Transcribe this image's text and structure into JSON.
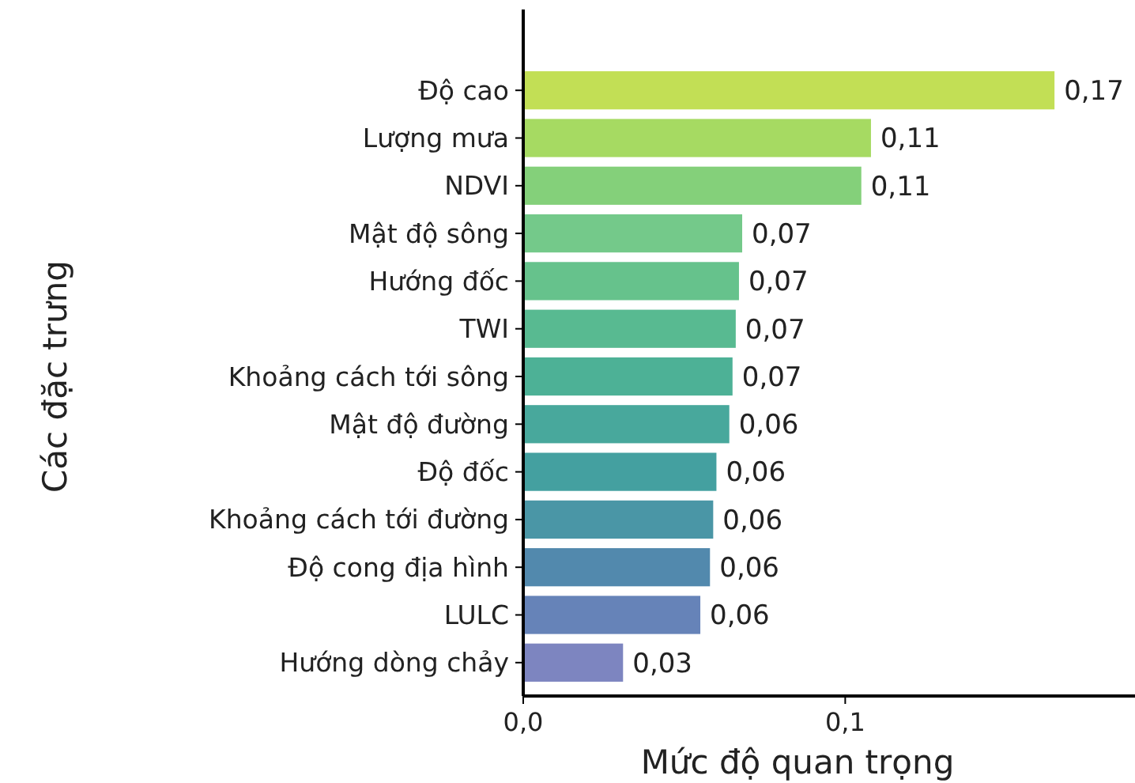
{
  "chart_data": {
    "type": "bar",
    "orientation": "horizontal",
    "xlabel": "Mức độ quan trọng",
    "ylabel": "Các đặc trưng",
    "categories": [
      "Độ cao",
      "Lượng mưa",
      "NDVI",
      "Mật độ sông",
      "Hướng đốc",
      "TWI",
      "Khoảng cách tới sông",
      "Mật độ đường",
      "Độ đốc",
      "Khoảng cách tới đường",
      "Độ cong địa hình",
      "LULC",
      "Hướng dòng chảy"
    ],
    "values": [
      0.165,
      0.108,
      0.105,
      0.068,
      0.067,
      0.066,
      0.065,
      0.064,
      0.06,
      0.059,
      0.058,
      0.055,
      0.031
    ],
    "value_labels": [
      "0,17",
      "0,11",
      "0,11",
      "0,07",
      "0,07",
      "0,07",
      "0,07",
      "0,06",
      "0,06",
      "0,06",
      "0,06",
      "0,06",
      "0,03"
    ],
    "colors": [
      "#c2df55",
      "#a6da62",
      "#84d07a",
      "#74c98a",
      "#66c28c",
      "#58ba91",
      "#4db196",
      "#48a89c",
      "#44a0a0",
      "#4a96a6",
      "#5289ad",
      "#6683b8",
      "#7d85c0"
    ],
    "xlim": [
      0,
      0.19
    ],
    "xticks": [
      {
        "value": 0,
        "label": "0,0"
      },
      {
        "value": 0.1,
        "label": "0,1"
      }
    ],
    "grid": false
  }
}
